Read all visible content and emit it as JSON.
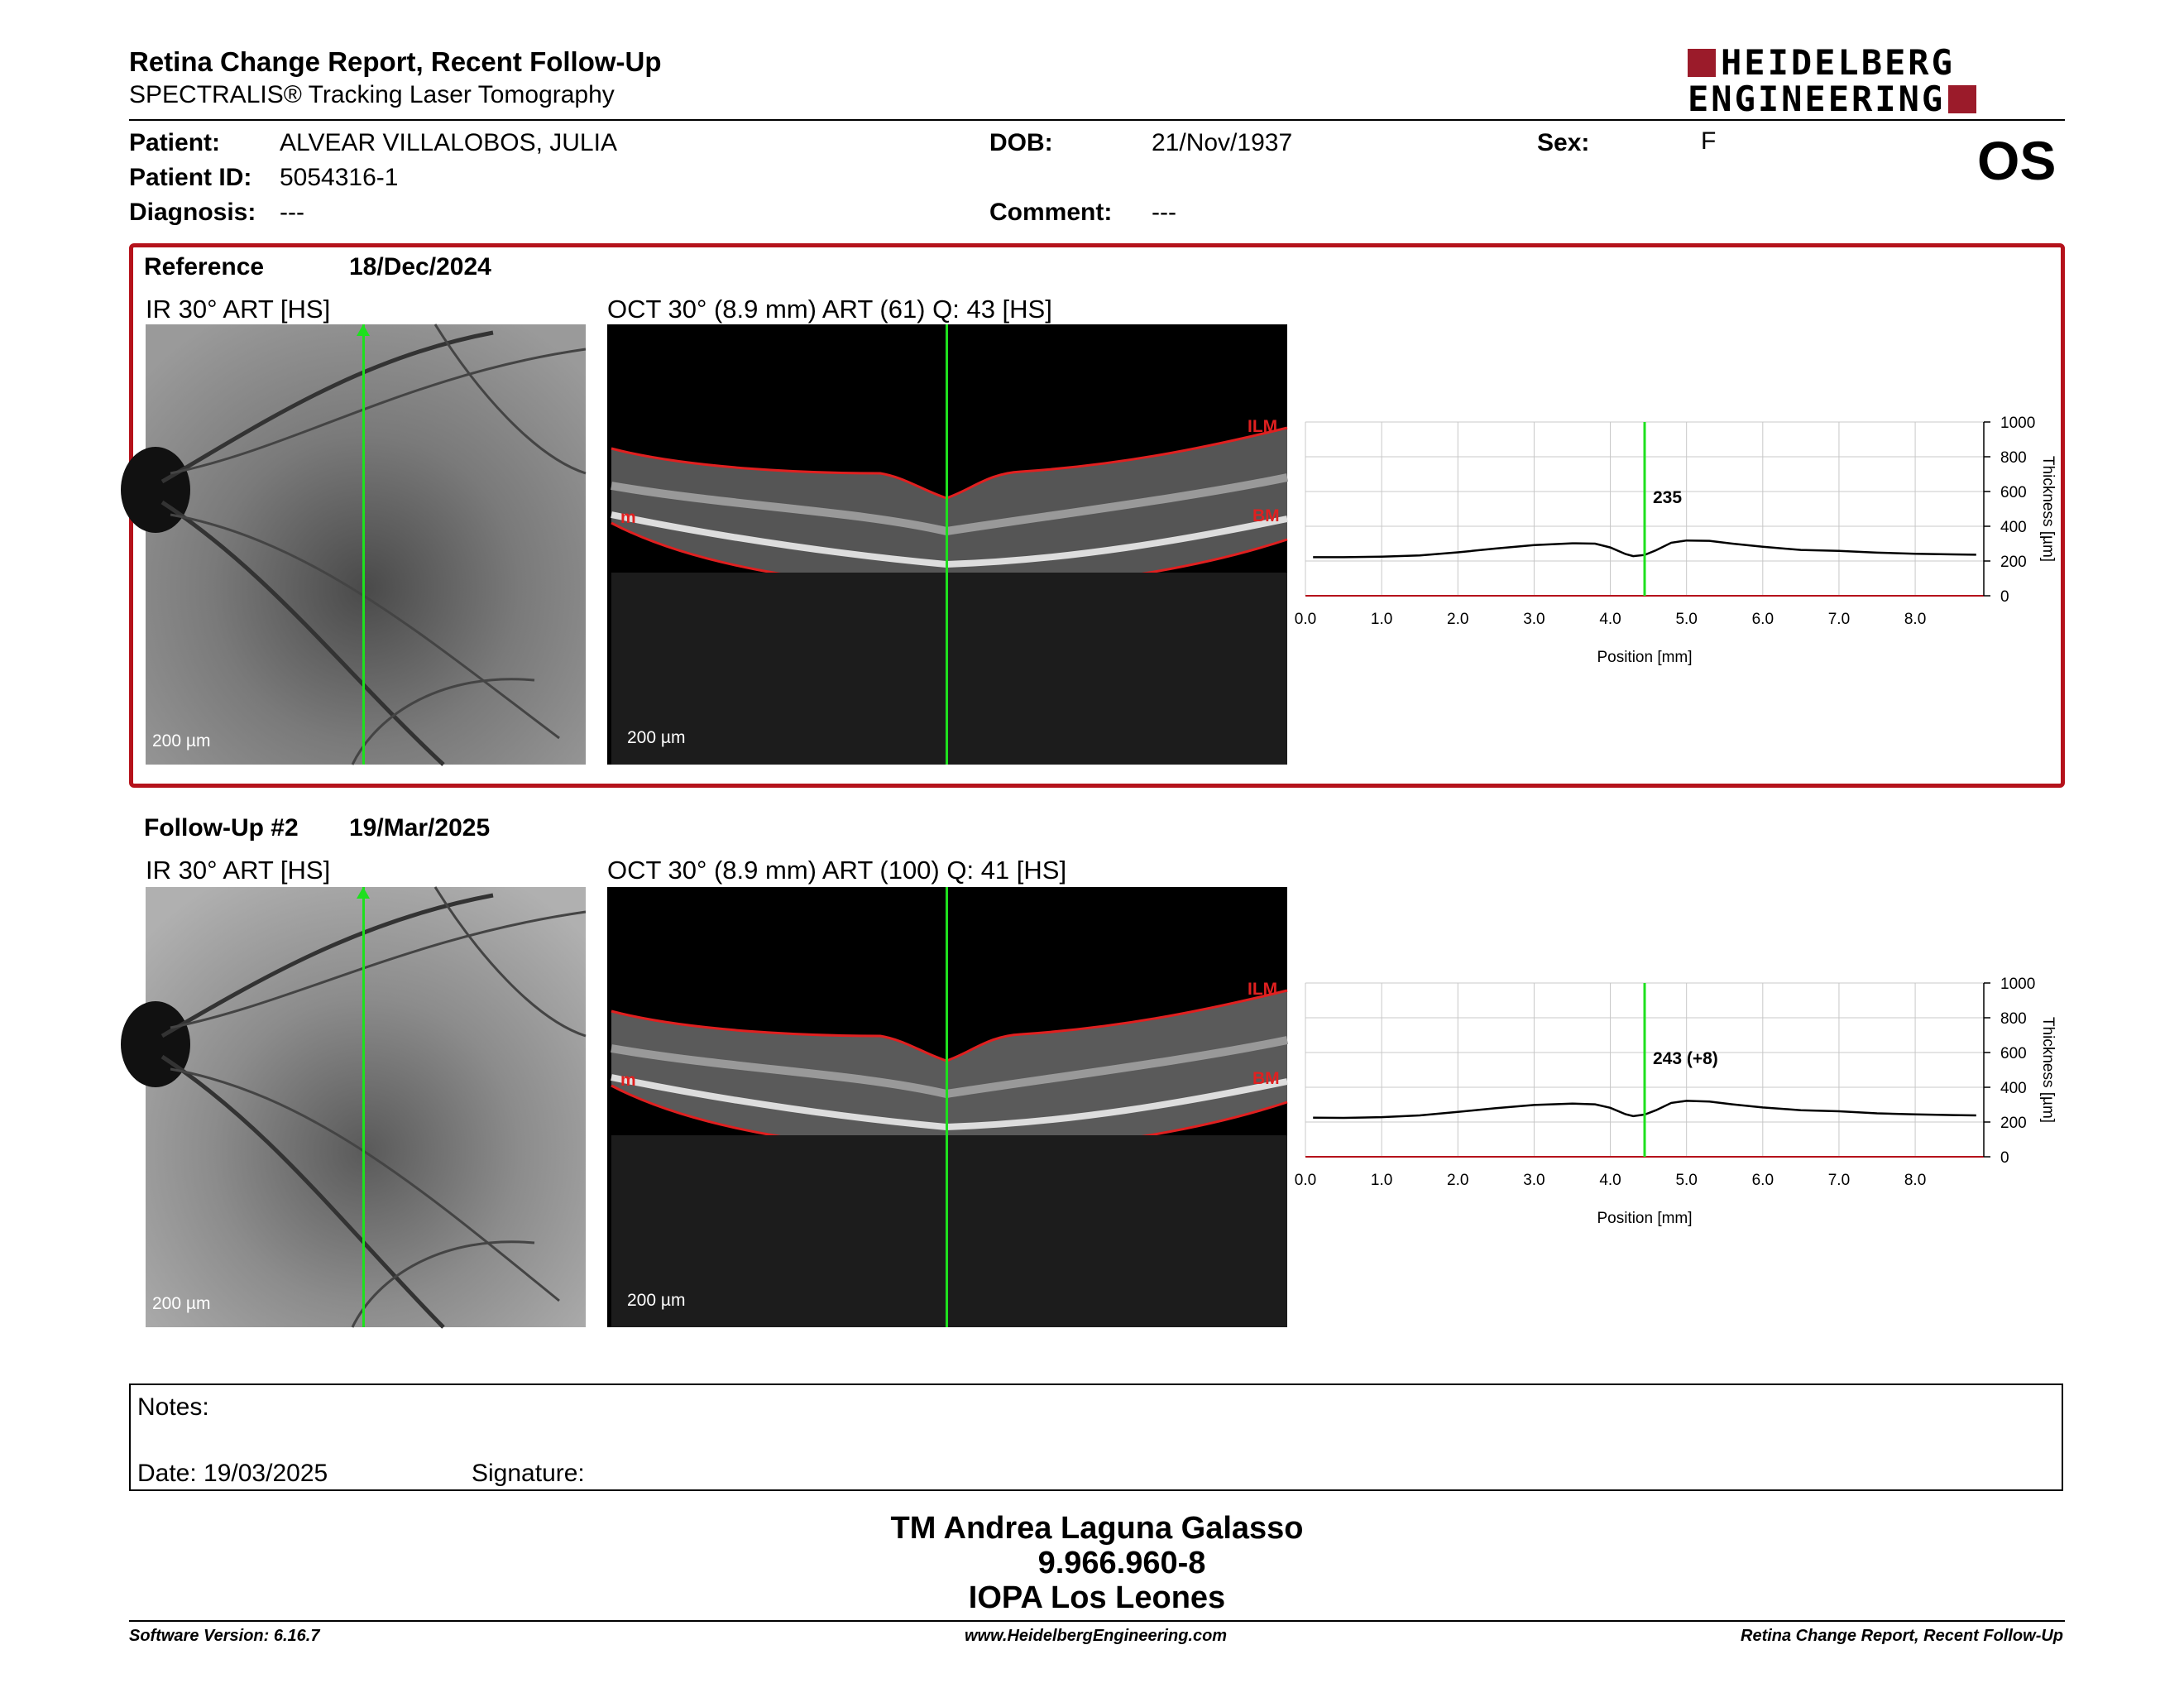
{
  "header": {
    "title": "Retina Change Report, Recent Follow-Up",
    "subtitle": "SPECTRALIS® Tracking Laser Tomography",
    "brand_line1": "HEIDELBERG",
    "brand_line2": "ENGINEERING",
    "eye": "OS",
    "brand_color": "#9b1b2a"
  },
  "patient": {
    "patient_label": "Patient:",
    "patient_value": "ALVEAR VILLALOBOS, JULIA",
    "id_label": "Patient ID:",
    "id_value": "5054316-1",
    "diagnosis_label": "Diagnosis:",
    "diagnosis_value": "---",
    "dob_label": "DOB:",
    "dob_value": "21/Nov/1937",
    "comment_label": "Comment:",
    "comment_value": "---",
    "sex_label": "Sex:",
    "sex_value": "F"
  },
  "reference": {
    "label": "Reference",
    "date": "18/Dec/2024",
    "ir_label": "IR 30° ART [HS]",
    "oct_label": "OCT 30° (8.9 mm) ART (61) Q: 43 [HS]",
    "scale": "200 µm",
    "ilm": "ILM",
    "bm": "BM",
    "m": "m",
    "highlight_color": "#b5121b"
  },
  "followup": {
    "label": "Follow-Up #2",
    "date": "19/Mar/2025",
    "ir_label": "IR 30° ART [HS]",
    "oct_label": "OCT 30° (8.9 mm) ART (100) Q: 41 [HS]",
    "scale": "200 µm",
    "ilm": "ILM",
    "bm": "BM",
    "m": "m"
  },
  "chart_data": [
    {
      "type": "line",
      "xlabel": "Position [mm]",
      "ylabel": "Thickness [µm]",
      "xlim": [
        0,
        8.9
      ],
      "ylim": [
        0,
        1000
      ],
      "x_ticks": [
        "0.0",
        "1.0",
        "2.0",
        "3.0",
        "4.0",
        "5.0",
        "6.0",
        "7.0",
        "8.0"
      ],
      "y_ticks": [
        "0",
        "200",
        "400",
        "600",
        "800",
        "1000"
      ],
      "cursor_x": 4.45,
      "cursor_label": "235",
      "x": [
        0.1,
        0.5,
        1.0,
        1.5,
        2.0,
        2.5,
        3.0,
        3.5,
        3.8,
        4.0,
        4.2,
        4.3,
        4.45,
        4.6,
        4.8,
        5.0,
        5.3,
        5.6,
        6.0,
        6.5,
        7.0,
        7.5,
        8.0,
        8.5,
        8.8
      ],
      "values": [
        222,
        222,
        225,
        232,
        250,
        272,
        292,
        302,
        300,
        278,
        240,
        228,
        235,
        262,
        305,
        318,
        316,
        300,
        282,
        264,
        258,
        248,
        242,
        238,
        236
      ]
    },
    {
      "type": "line",
      "xlabel": "Position [mm]",
      "ylabel": "Thickness [µm]",
      "xlim": [
        0,
        8.9
      ],
      "ylim": [
        0,
        1000
      ],
      "x_ticks": [
        "0.0",
        "1.0",
        "2.0",
        "3.0",
        "4.0",
        "5.0",
        "6.0",
        "7.0",
        "8.0"
      ],
      "y_ticks": [
        "0",
        "200",
        "400",
        "600",
        "800",
        "1000"
      ],
      "cursor_x": 4.45,
      "cursor_label": "243 (+8)",
      "x": [
        0.1,
        0.5,
        1.0,
        1.5,
        2.0,
        2.5,
        3.0,
        3.5,
        3.8,
        4.0,
        4.2,
        4.3,
        4.45,
        4.6,
        4.8,
        5.0,
        5.3,
        5.6,
        6.0,
        6.5,
        7.0,
        7.5,
        8.0,
        8.5,
        8.8
      ],
      "values": [
        225,
        224,
        228,
        238,
        258,
        280,
        298,
        306,
        302,
        282,
        245,
        234,
        243,
        268,
        310,
        322,
        318,
        302,
        284,
        268,
        262,
        250,
        244,
        240,
        238
      ]
    }
  ],
  "notes": {
    "notes_label": "Notes:",
    "date_label": "Date: 19/03/2025",
    "signature_label": "Signature:"
  },
  "signature": {
    "name": "TM Andrea Laguna Galasso",
    "id": "9.966.960-8",
    "org": "IOPA Los Leones"
  },
  "footer": {
    "software": "Software Version: 6.16.7",
    "website": "www.HeidelbergEngineering.com",
    "report": "Retina Change Report, Recent Follow-Up"
  }
}
